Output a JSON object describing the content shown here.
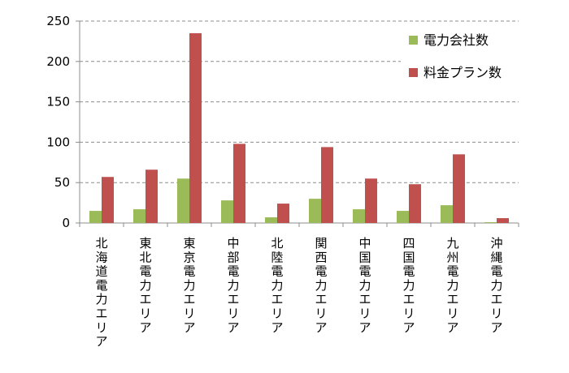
{
  "chart_data": {
    "type": "bar",
    "categories": [
      "北海道電力エリア",
      "東北電力エリア",
      "東京電力エリア",
      "中部電力エリア",
      "北陸電力エリア",
      "関西電力エリア",
      "中国電力エリア",
      "四国電力エリア",
      "九州電力エリア",
      "沖縄電力エリア"
    ],
    "series": [
      {
        "name": "電力会社数",
        "color": "#9BBB59",
        "values": [
          15,
          17,
          55,
          28,
          7,
          30,
          17,
          15,
          22,
          1
        ]
      },
      {
        "name": "料金プラン数",
        "color": "#C0504D",
        "values": [
          57,
          66,
          235,
          98,
          24,
          94,
          55,
          48,
          85,
          6
        ]
      }
    ],
    "ylim": [
      0,
      250
    ],
    "yticks": [
      0,
      50,
      100,
      150,
      200,
      250
    ],
    "grid": true,
    "legend": "top-right",
    "title": "",
    "xlabel": "",
    "ylabel": ""
  }
}
